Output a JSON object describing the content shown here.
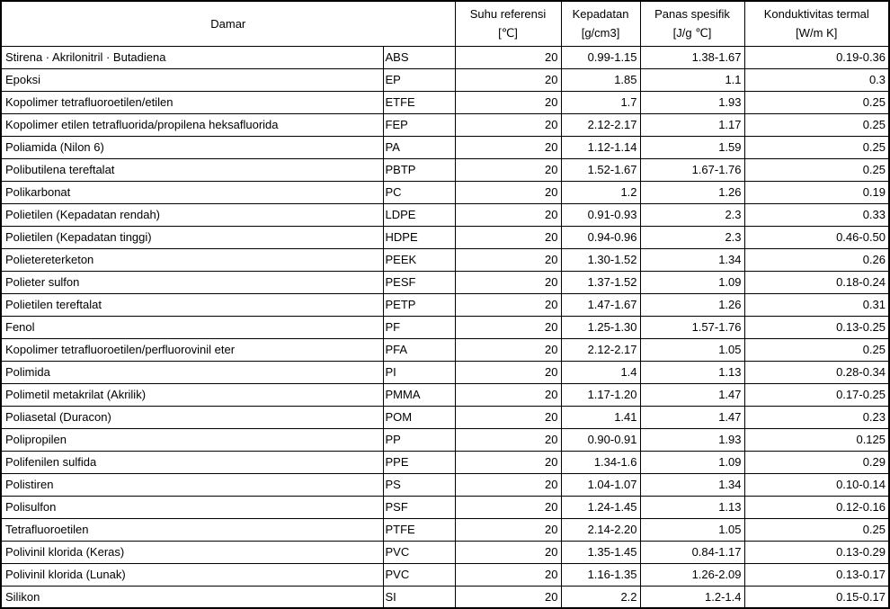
{
  "colors": {
    "border": "#000000",
    "text": "#000000",
    "background": "#ffffff"
  },
  "table": {
    "header": {
      "damar": "Damar",
      "columns": [
        {
          "title": "Suhu referensi",
          "unit": "[℃]"
        },
        {
          "title": "Kepadatan",
          "unit": "[g/cm3]"
        },
        {
          "title": "Panas spesifik",
          "unit": "[J/g ℃]"
        },
        {
          "title": "Konduktivitas termal",
          "unit": "[W/m K]"
        }
      ]
    },
    "rows": [
      {
        "name": "Stirena · Akrilonitril · Butadiena",
        "abbr": "ABS",
        "temp": "20",
        "density": "0.99-1.15",
        "specific_heat": "1.38-1.67",
        "conductivity": "0.19-0.36"
      },
      {
        "name": "Epoksi",
        "abbr": "EP",
        "temp": "20",
        "density": "1.85",
        "specific_heat": "1.1",
        "conductivity": "0.3"
      },
      {
        "name": "Kopolimer tetrafluoroetilen/etilen",
        "abbr": "ETFE",
        "temp": "20",
        "density": "1.7",
        "specific_heat": "1.93",
        "conductivity": "0.25"
      },
      {
        "name": "Kopolimer etilen tetrafluorida/propilena heksafluorida",
        "abbr": "FEP",
        "temp": "20",
        "density": "2.12-2.17",
        "specific_heat": "1.17",
        "conductivity": "0.25"
      },
      {
        "name": "Poliamida (Nilon 6)",
        "abbr": "PA",
        "temp": "20",
        "density": "1.12-1.14",
        "specific_heat": "1.59",
        "conductivity": "0.25"
      },
      {
        "name": "Polibutilena tereftalat",
        "abbr": "PBTP",
        "temp": "20",
        "density": "1.52-1.67",
        "specific_heat": "1.67-1.76",
        "conductivity": "0.25"
      },
      {
        "name": "Polikarbonat",
        "abbr": "PC",
        "temp": "20",
        "density": "1.2",
        "specific_heat": "1.26",
        "conductivity": "0.19"
      },
      {
        "name": "Polietilen (Kepadatan rendah)",
        "abbr": "LDPE",
        "temp": "20",
        "density": "0.91-0.93",
        "specific_heat": "2.3",
        "conductivity": "0.33"
      },
      {
        "name": "Polietilen (Kepadatan tinggi)",
        "abbr": "HDPE",
        "temp": "20",
        "density": "0.94-0.96",
        "specific_heat": "2.3",
        "conductivity": "0.46-0.50"
      },
      {
        "name": "Polietereterketon",
        "abbr": "PEEK",
        "temp": "20",
        "density": "1.30-1.52",
        "specific_heat": "1.34",
        "conductivity": "0.26"
      },
      {
        "name": "Polieter sulfon",
        "abbr": "PESF",
        "temp": "20",
        "density": "1.37-1.52",
        "specific_heat": "1.09",
        "conductivity": "0.18-0.24"
      },
      {
        "name": "Polietilen tereftalat",
        "abbr": "PETP",
        "temp": "20",
        "density": "1.47-1.67",
        "specific_heat": "1.26",
        "conductivity": "0.31"
      },
      {
        "name": "Fenol",
        "abbr": "PF",
        "temp": "20",
        "density": "1.25-1.30",
        "specific_heat": "1.57-1.76",
        "conductivity": "0.13-0.25"
      },
      {
        "name": "Kopolimer tetrafluoroetilen/perfluorovinil eter",
        "abbr": "PFA",
        "temp": "20",
        "density": "2.12-2.17",
        "specific_heat": "1.05",
        "conductivity": "0.25"
      },
      {
        "name": "Polimida",
        "abbr": "PI",
        "temp": "20",
        "density": "1.4",
        "specific_heat": "1.13",
        "conductivity": "0.28-0.34"
      },
      {
        "name": "Polimetil metakrilat (Akrilik)",
        "abbr": "PMMA",
        "temp": "20",
        "density": "1.17-1.20",
        "specific_heat": "1.47",
        "conductivity": "0.17-0.25"
      },
      {
        "name": "Poliasetal (Duracon)",
        "abbr": "POM",
        "temp": "20",
        "density": "1.41",
        "specific_heat": "1.47",
        "conductivity": "0.23"
      },
      {
        "name": "Polipropilen",
        "abbr": "PP",
        "temp": "20",
        "density": "0.90-0.91",
        "specific_heat": "1.93",
        "conductivity": "0.125"
      },
      {
        "name": "Polifenilen sulfida",
        "abbr": "PPE",
        "temp": "20",
        "density": "1.34-1.6",
        "specific_heat": "1.09",
        "conductivity": "0.29"
      },
      {
        "name": "Polistiren",
        "abbr": "PS",
        "temp": "20",
        "density": "1.04-1.07",
        "specific_heat": "1.34",
        "conductivity": "0.10-0.14"
      },
      {
        "name": "Polisulfon",
        "abbr": "PSF",
        "temp": "20",
        "density": "1.24-1.45",
        "specific_heat": "1.13",
        "conductivity": "0.12-0.16"
      },
      {
        "name": "Tetrafluoroetilen",
        "abbr": "PTFE",
        "temp": "20",
        "density": "2.14-2.20",
        "specific_heat": "1.05",
        "conductivity": "0.25"
      },
      {
        "name": "Polivinil klorida (Keras)",
        "abbr": "PVC",
        "temp": "20",
        "density": "1.35-1.45",
        "specific_heat": "0.84-1.17",
        "conductivity": "0.13-0.29"
      },
      {
        "name": "Polivinil klorida (Lunak)",
        "abbr": "PVC",
        "temp": "20",
        "density": "1.16-1.35",
        "specific_heat": "1.26-2.09",
        "conductivity": "0.13-0.17"
      },
      {
        "name": "Silikon",
        "abbr": "SI",
        "temp": "20",
        "density": "2.2",
        "specific_heat": "1.2-1.4",
        "conductivity": "0.15-0.17"
      }
    ]
  }
}
